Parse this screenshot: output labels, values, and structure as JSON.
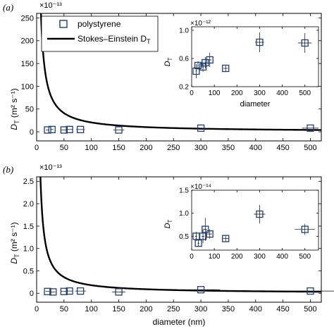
{
  "figure": {
    "xlabel": "diameter (nm)",
    "legend": {
      "entries": [
        "polystyrene",
        "Stokes–Einstein D_T"
      ],
      "marker_entry": "polystyrene",
      "line_entry_main": "Stokes–Einstein D",
      "line_entry_sub": "T"
    }
  },
  "chart_data": [
    {
      "panel": "(a)",
      "type": "scatter",
      "ylabel_main": "D",
      "ylabel_sub": "T",
      "ylabel_units": "(m² s⁻¹)",
      "multiplier": "×10⁻¹³",
      "xlabel": "",
      "xlim": [
        0,
        520
      ],
      "ylim": [
        -20,
        260
      ],
      "xticks": [
        0,
        50,
        100,
        150,
        200,
        250,
        300,
        350,
        400,
        450,
        500
      ],
      "yticks": [
        0,
        50,
        100,
        150,
        200,
        250
      ],
      "grid": false,
      "legend_position": "top-left",
      "series": [
        {
          "name": "polystyrene",
          "marker": "square",
          "color": "#1f3f7a",
          "points": [
            {
              "x": 20,
              "y": 4,
              "xerr": 3
            },
            {
              "x": 28,
              "y": 5,
              "xerr": 3
            },
            {
              "x": 50,
              "y": 4,
              "xerr": 5
            },
            {
              "x": 60,
              "y": 5,
              "xerr": 6
            },
            {
              "x": 80,
              "y": 5,
              "xerr": 8
            },
            {
              "x": 150,
              "y": 4,
              "xerr": 10
            },
            {
              "x": 300,
              "y": 8,
              "xerr": 5
            },
            {
              "x": 500,
              "y": 8,
              "xerr": 15
            }
          ]
        },
        {
          "name": "Stokes–Einstein D_T",
          "type": "line",
          "color": "#000000",
          "curve": {
            "form": "k/x",
            "k": 2050,
            "xmin": 7.9,
            "xmax": 520
          }
        }
      ],
      "inset": {
        "multiplier": "×10⁻¹²",
        "ylabel_main": "D",
        "ylabel_sub": "T",
        "xlabel": "diameter",
        "xlim": [
          0,
          560
        ],
        "ylim": [
          0.2,
          1.05
        ],
        "xticks": [
          0,
          100,
          200,
          300,
          400,
          500
        ],
        "yticks": [
          0.2,
          0.6,
          1.0
        ],
        "ytick_labels": [
          "0.2",
          "0.6",
          "1.0"
        ],
        "points": [
          {
            "x": 20,
            "y": 0.42,
            "xerr": 3,
            "yerr": 0.1
          },
          {
            "x": 28,
            "y": 0.5,
            "xerr": 3,
            "yerr": 0.06
          },
          {
            "x": 50,
            "y": 0.48,
            "xerr": 5,
            "yerr": 0.07
          },
          {
            "x": 60,
            "y": 0.54,
            "xerr": 6,
            "yerr": 0.08
          },
          {
            "x": 80,
            "y": 0.58,
            "xerr": 8,
            "yerr": 0.1
          },
          {
            "x": 150,
            "y": 0.46,
            "xerr": 10,
            "yerr": 0.05
          },
          {
            "x": 300,
            "y": 0.83,
            "xerr": 20,
            "yerr": 0.14
          },
          {
            "x": 500,
            "y": 0.82,
            "xerr": 30,
            "yerr": 0.14
          }
        ]
      }
    },
    {
      "panel": "(b)",
      "type": "scatter",
      "ylabel_main": "D",
      "ylabel_sub": "T",
      "ylabel_units": "(m² s⁻¹)",
      "multiplier": "×10⁻¹³",
      "xlabel": "diameter (nm)",
      "xlim": [
        0,
        520
      ],
      "ylim": [
        -0.2,
        2.6
      ],
      "xticks": [
        0,
        50,
        100,
        150,
        200,
        250,
        300,
        350,
        400,
        450,
        500
      ],
      "yticks": [
        0,
        0.5,
        1.0,
        1.5,
        2.0,
        2.5
      ],
      "ytick_labels": [
        "0",
        "0.5",
        "1.0",
        "1.5",
        "2.0",
        "2.5"
      ],
      "grid": false,
      "series": [
        {
          "name": "polystyrene",
          "marker": "square",
          "color": "#1f3f7a",
          "points": [
            {
              "x": 20,
              "y": 0.04,
              "xerr": 4
            },
            {
              "x": 30,
              "y": 0.03,
              "xerr": 4
            },
            {
              "x": 50,
              "y": 0.04,
              "xerr": 6
            },
            {
              "x": 60,
              "y": 0.05,
              "xerr": 6
            },
            {
              "x": 80,
              "y": 0.05,
              "xerr": 10
            },
            {
              "x": 150,
              "y": 0.03,
              "xerr": 12
            },
            {
              "x": 300,
              "y": 0.08,
              "xerr": 35
            },
            {
              "x": 500,
              "y": 0.05,
              "xerr": 45
            }
          ]
        },
        {
          "name": "Stokes–Einstein D_T",
          "type": "line",
          "color": "#000000",
          "curve": {
            "form": "k/x",
            "k": 18,
            "xmin": 6.9,
            "xmax": 520
          }
        }
      ],
      "inset": {
        "multiplier": "×10⁻¹⁴",
        "ylabel_main": "D",
        "ylabel_sub": "T",
        "xlabel": "diameter",
        "xlim": [
          0,
          560
        ],
        "ylim": [
          0.2,
          1.5
        ],
        "xticks": [
          0,
          100,
          200,
          300,
          400,
          500
        ],
        "yticks": [
          0.5,
          1.0,
          1.5
        ],
        "ytick_labels": [
          "0.5",
          "1.0",
          "1.5"
        ],
        "points": [
          {
            "x": 20,
            "y": 0.5,
            "xerr": 4,
            "yerr": 0.1
          },
          {
            "x": 30,
            "y": 0.35,
            "xerr": 4,
            "yerr": 0.08
          },
          {
            "x": 50,
            "y": 0.5,
            "xerr": 6,
            "yerr": 0.15
          },
          {
            "x": 60,
            "y": 0.65,
            "xerr": 8,
            "yerr": 0.25
          },
          {
            "x": 80,
            "y": 0.55,
            "xerr": 10,
            "yerr": 0.1
          },
          {
            "x": 150,
            "y": 0.45,
            "xerr": 12,
            "yerr": 0.06
          },
          {
            "x": 300,
            "y": 0.98,
            "xerr": 25,
            "yerr": 0.2
          },
          {
            "x": 500,
            "y": 0.65,
            "xerr": 45,
            "yerr": 0.12
          }
        ]
      }
    }
  ]
}
